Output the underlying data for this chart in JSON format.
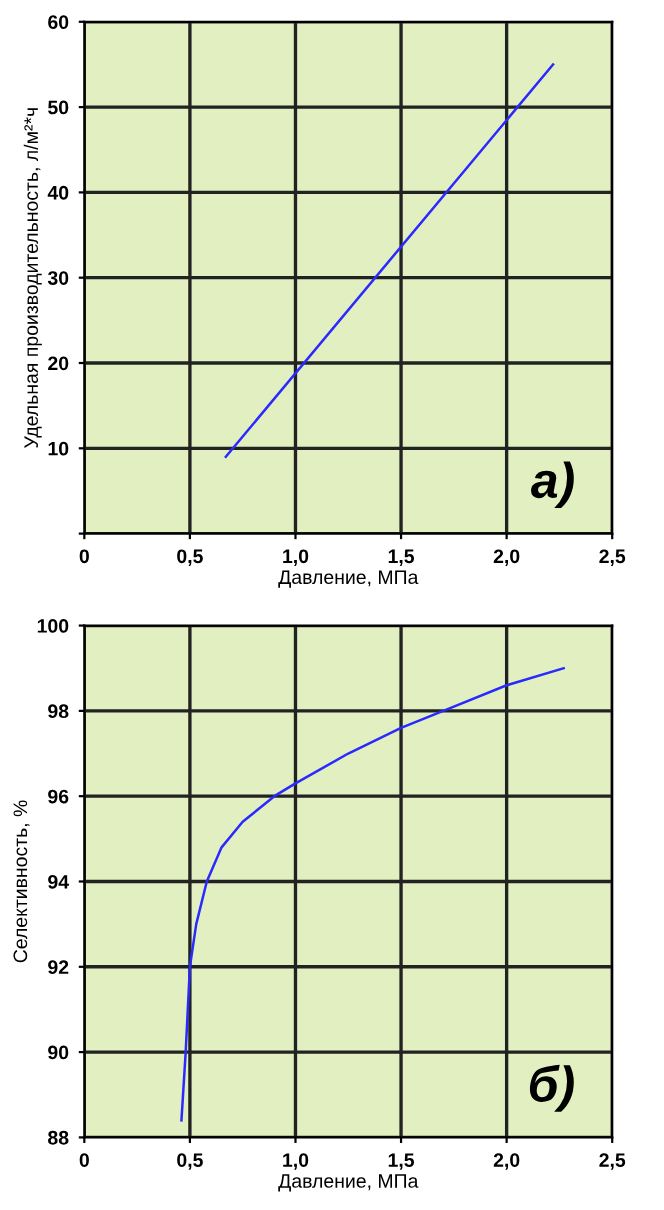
{
  "chart_data": [
    {
      "type": "line",
      "xlabel": "Давление, МПа",
      "ylabel": "Удельная производительность, л/м²*ч",
      "x": [
        0.67,
        2.22
      ],
      "series": [
        {
          "color": "#2a2aff",
          "values": [
            9,
            55
          ]
        }
      ],
      "xlim": [
        0,
        2.5
      ],
      "ylim": [
        0,
        60
      ],
      "xticks": [
        0,
        {
          "value": 0.5,
          "label": "0,5"
        },
        {
          "value": 1.0,
          "label": "1,0"
        },
        {
          "value": 1.5,
          "label": "1,5"
        },
        {
          "value": 2.0,
          "label": "2,0"
        },
        {
          "value": 2.5,
          "label": "2,5"
        }
      ],
      "yticks": [
        {
          "value": 0,
          "label": null
        },
        10,
        20,
        30,
        40,
        50,
        60
      ],
      "grid": true,
      "annotations": [
        "а)"
      ]
    },
    {
      "type": "line",
      "xlabel": "Давление, МПа",
      "ylabel": "Селективность, %",
      "x": [
        0.46,
        0.48,
        0.5,
        0.53,
        0.58,
        0.65,
        0.75,
        0.9,
        1.0,
        1.25,
        1.5,
        1.75,
        2.0,
        2.27
      ],
      "series": [
        {
          "color": "#2a2aff",
          "values": [
            88.4,
            90,
            92,
            93,
            94,
            94.8,
            95.4,
            96,
            96.3,
            97,
            97.6,
            98.1,
            98.6,
            99
          ]
        }
      ],
      "xlim": [
        0,
        2.5
      ],
      "ylim": [
        88,
        100
      ],
      "xticks": [
        0,
        {
          "value": 0.5,
          "label": "0,5"
        },
        {
          "value": 1.0,
          "label": "1,0"
        },
        {
          "value": 1.5,
          "label": "1,5"
        },
        {
          "value": 2.0,
          "label": "2,0"
        },
        {
          "value": 2.5,
          "label": "2,5"
        }
      ],
      "yticks": [
        88,
        90,
        92,
        94,
        96,
        98,
        100
      ],
      "grid": true,
      "annotations": [
        "б)"
      ]
    }
  ]
}
